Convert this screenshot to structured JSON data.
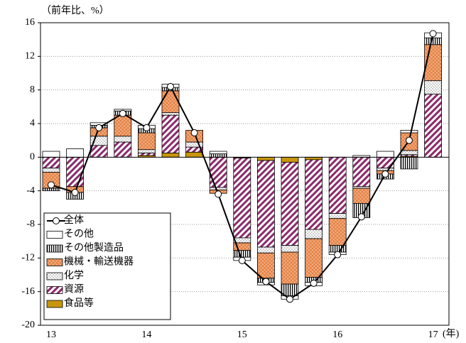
{
  "chart_data": {
    "type": "stacked-bar-line",
    "ylabel": "（前年比、%）",
    "xlabel": "(年)",
    "categories": [
      "13",
      null,
      null,
      null,
      "14",
      null,
      null,
      null,
      "15",
      null,
      null,
      null,
      "16",
      null,
      null,
      null,
      "17"
    ],
    "ylim": [
      -20,
      16
    ],
    "yticks": [
      -20,
      -16,
      -12,
      -8,
      -4,
      0,
      4,
      8,
      12,
      16
    ],
    "grid": true,
    "legend": "lower-left",
    "series": [
      {
        "name": "食品等",
        "color": "#c8960c",
        "pattern": "solid",
        "values": [
          0,
          0,
          0,
          0,
          0.2,
          0.5,
          0.6,
          0,
          -0.1,
          -0.4,
          -0.6,
          -0.3,
          0,
          0,
          0,
          0.1,
          0
        ]
      },
      {
        "name": "資源",
        "color": "#8b2a6b",
        "pattern": "diagonal",
        "values": [
          -1.3,
          -3.5,
          1.4,
          1.8,
          0.3,
          4.5,
          0.6,
          -3.6,
          -9.5,
          -10.3,
          -9.9,
          -8.3,
          -6.7,
          -3.5,
          -1.3,
          0.2,
          7.5
        ]
      },
      {
        "name": "化学",
        "color": "#555555",
        "pattern": "dots",
        "values": [
          -0.5,
          0,
          1.1,
          0.7,
          0.4,
          0.3,
          0.6,
          -0.3,
          -0.6,
          -0.7,
          -0.8,
          -1.1,
          -0.6,
          -0.2,
          -0.3,
          0.5,
          1.6
        ]
      },
      {
        "name": "機械・輸送機器",
        "color": "#f4a77a",
        "pattern": "cross",
        "values": [
          -1.9,
          -0.7,
          1.0,
          2.5,
          2.0,
          2.6,
          1.4,
          -0.4,
          -0.9,
          -3.0,
          -3.8,
          -4.6,
          -3.2,
          -1.8,
          -0.4,
          2.1,
          4.3
        ]
      },
      {
        "name": "その他製造品",
        "color": "#000000",
        "pattern": "vertical",
        "values": [
          -0.3,
          -0.8,
          0.3,
          0.5,
          0.5,
          0.4,
          0,
          0.4,
          -0.8,
          -0.5,
          -1.4,
          -0.6,
          -0.8,
          -1.7,
          -0.6,
          -1.4,
          0.8
        ]
      },
      {
        "name": "その他",
        "color": "#ffffff",
        "pattern": "solid",
        "values": [
          0.7,
          1.0,
          0.3,
          0.2,
          0.4,
          0.4,
          0,
          0.3,
          -0.4,
          -0.3,
          -0.4,
          -0.4,
          -0.3,
          0.2,
          0.7,
          0.3,
          0.6
        ]
      },
      {
        "name": "全体",
        "type": "line",
        "color": "#000000",
        "values": [
          -3.3,
          -4.2,
          3.5,
          5.2,
          3.5,
          8.4,
          2.9,
          -4.4,
          -12.3,
          -14.8,
          -16.9,
          -15.0,
          -11.6,
          -7.1,
          -2.0,
          2.0,
          14.7
        ]
      }
    ]
  }
}
